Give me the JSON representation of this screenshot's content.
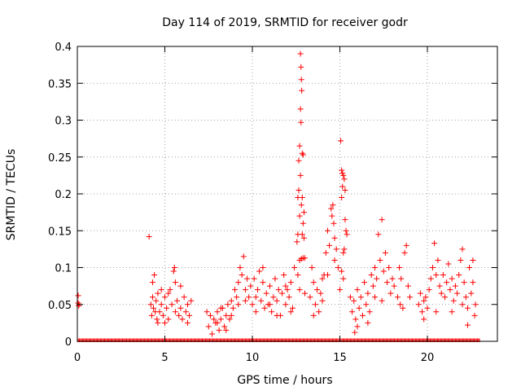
{
  "chart_data": {
    "type": "scatter",
    "title": "Day 114 of 2019, SRMTID for receiver godr",
    "xlabel": "GPS time / hours",
    "ylabel": "SRMTID / TECUs",
    "xlim": [
      0,
      24
    ],
    "ylim": [
      0,
      0.4
    ],
    "xticks": [
      0,
      5,
      10,
      15,
      20
    ],
    "yticks": [
      0,
      0.05,
      0.1,
      0.15,
      0.2,
      0.25,
      0.3,
      0.35,
      0.4
    ],
    "ytick_labels": [
      "0",
      "0.05",
      "0.1",
      "0.15",
      "0.2",
      "0.25",
      "0.3",
      "0.35",
      "0.4"
    ],
    "grid": true,
    "marker": "+",
    "color": "#ff0000",
    "series": [
      {
        "name": "SRMTID",
        "points": [
          [
            0.05,
            0.062
          ],
          [
            0.05,
            0.052
          ],
          [
            0.08,
            0.048
          ],
          [
            0.1,
            0.05
          ],
          [
            4.1,
            0.142
          ],
          [
            4.2,
            0.05
          ],
          [
            4.25,
            0.035
          ],
          [
            4.3,
            0.06
          ],
          [
            4.35,
            0.045
          ],
          [
            4.4,
            0.09
          ],
          [
            4.45,
            0.04
          ],
          [
            4.5,
            0.055
          ],
          [
            4.55,
            0.03
          ],
          [
            4.6,
            0.065
          ],
          [
            4.7,
            0.04
          ],
          [
            4.8,
            0.05
          ],
          [
            4.9,
            0.035
          ],
          [
            5.0,
            0.06
          ],
          [
            5.1,
            0.045
          ],
          [
            5.2,
            0.03
          ],
          [
            5.3,
            0.07
          ],
          [
            5.4,
            0.05
          ],
          [
            5.5,
            0.095
          ],
          [
            5.55,
            0.1
          ],
          [
            5.6,
            0.04
          ],
          [
            5.7,
            0.055
          ],
          [
            5.8,
            0.035
          ],
          [
            5.9,
            0.045
          ],
          [
            6.0,
            0.03
          ],
          [
            6.1,
            0.06
          ],
          [
            6.2,
            0.04
          ],
          [
            6.3,
            0.05
          ],
          [
            6.4,
            0.035
          ],
          [
            6.5,
            0.055
          ],
          [
            4.3,
            0.08
          ],
          [
            4.6,
            0.025
          ],
          [
            5.2,
            0.065
          ],
          [
            5.9,
            0.075
          ],
          [
            6.3,
            0.025
          ],
          [
            4.8,
            0.07
          ],
          [
            5.0,
            0.025
          ],
          [
            5.6,
            0.08
          ],
          [
            7.4,
            0.04
          ],
          [
            7.5,
            0.02
          ],
          [
            7.6,
            0.035
          ],
          [
            7.7,
            0.01
          ],
          [
            7.8,
            0.03
          ],
          [
            7.9,
            0.025
          ],
          [
            8.0,
            0.04
          ],
          [
            8.1,
            0.015
          ],
          [
            8.2,
            0.03
          ],
          [
            8.3,
            0.045
          ],
          [
            8.4,
            0.02
          ],
          [
            8.5,
            0.035
          ],
          [
            8.6,
            0.05
          ],
          [
            8.7,
            0.03
          ],
          [
            8.8,
            0.055
          ],
          [
            8.9,
            0.045
          ],
          [
            9.0,
            0.07
          ],
          [
            9.1,
            0.06
          ],
          [
            9.2,
            0.08
          ],
          [
            9.3,
            0.1
          ],
          [
            9.4,
            0.09
          ],
          [
            9.5,
            0.115
          ],
          [
            9.6,
            0.07
          ],
          [
            9.7,
            0.085
          ],
          [
            9.8,
            0.06
          ],
          [
            9.9,
            0.075
          ],
          [
            8.0,
            0.025
          ],
          [
            8.2,
            0.045
          ],
          [
            8.5,
            0.015
          ],
          [
            8.8,
            0.035
          ],
          [
            9.2,
            0.05
          ],
          [
            9.6,
            0.055
          ],
          [
            10.0,
            0.05
          ],
          [
            10.1,
            0.085
          ],
          [
            10.2,
            0.06
          ],
          [
            10.3,
            0.07
          ],
          [
            10.4,
            0.095
          ],
          [
            10.5,
            0.055
          ],
          [
            10.6,
            0.08
          ],
          [
            10.7,
            0.045
          ],
          [
            10.8,
            0.065
          ],
          [
            10.9,
            0.05
          ],
          [
            11.0,
            0.075
          ],
          [
            11.1,
            0.04
          ],
          [
            11.2,
            0.06
          ],
          [
            11.3,
            0.085
          ],
          [
            11.4,
            0.055
          ],
          [
            11.5,
            0.07
          ],
          [
            11.6,
            0.035
          ],
          [
            11.7,
            0.065
          ],
          [
            11.8,
            0.09
          ],
          [
            11.9,
            0.05
          ],
          [
            12.0,
            0.07
          ],
          [
            12.1,
            0.06
          ],
          [
            12.2,
            0.08
          ],
          [
            12.3,
            0.045
          ],
          [
            12.4,
            0.1
          ],
          [
            10.2,
            0.04
          ],
          [
            10.6,
            0.1
          ],
          [
            11.0,
            0.05
          ],
          [
            11.4,
            0.035
          ],
          [
            11.9,
            0.075
          ],
          [
            12.2,
            0.04
          ],
          [
            12.55,
            0.135
          ],
          [
            12.6,
            0.145
          ],
          [
            12.65,
            0.245
          ],
          [
            12.7,
            0.265
          ],
          [
            12.75,
            0.39
          ],
          [
            12.78,
            0.372
          ],
          [
            12.8,
            0.355
          ],
          [
            12.82,
            0.34
          ],
          [
            12.75,
            0.315
          ],
          [
            12.78,
            0.297
          ],
          [
            12.85,
            0.255
          ],
          [
            12.9,
            0.253
          ],
          [
            12.75,
            0.225
          ],
          [
            12.85,
            0.195
          ],
          [
            12.8,
            0.185
          ],
          [
            12.7,
            0.17
          ],
          [
            12.95,
            0.175
          ],
          [
            12.9,
            0.16
          ],
          [
            12.85,
            0.145
          ],
          [
            12.7,
            0.11
          ],
          [
            12.8,
            0.112
          ],
          [
            12.9,
            0.113
          ],
          [
            13.0,
            0.113
          ],
          [
            12.6,
            0.09
          ],
          [
            12.7,
            0.07
          ],
          [
            13.0,
            0.065
          ],
          [
            12.65,
            0.205
          ],
          [
            12.6,
            0.195
          ],
          [
            12.95,
            0.14
          ],
          [
            13.3,
            0.06
          ],
          [
            13.4,
            0.1
          ],
          [
            13.5,
            0.08
          ],
          [
            13.6,
            0.05
          ],
          [
            13.7,
            0.07
          ],
          [
            13.8,
            0.04
          ],
          [
            13.9,
            0.065
          ],
          [
            14.0,
            0.055
          ],
          [
            14.1,
            0.09
          ],
          [
            14.2,
            0.12
          ],
          [
            14.3,
            0.15
          ],
          [
            14.4,
            0.13
          ],
          [
            14.5,
            0.18
          ],
          [
            14.55,
            0.17
          ],
          [
            14.6,
            0.185
          ],
          [
            14.65,
            0.16
          ],
          [
            14.7,
            0.14
          ],
          [
            14.8,
            0.125
          ],
          [
            14.9,
            0.1
          ],
          [
            13.5,
            0.035
          ],
          [
            14.0,
            0.085
          ],
          [
            14.3,
            0.09
          ],
          [
            14.7,
            0.11
          ],
          [
            15.05,
            0.272
          ],
          [
            15.1,
            0.232
          ],
          [
            15.15,
            0.228
          ],
          [
            15.2,
            0.225
          ],
          [
            15.25,
            0.22
          ],
          [
            15.3,
            0.205
          ],
          [
            15.15,
            0.21
          ],
          [
            15.1,
            0.195
          ],
          [
            15.3,
            0.165
          ],
          [
            15.35,
            0.15
          ],
          [
            15.4,
            0.145
          ],
          [
            15.25,
            0.125
          ],
          [
            15.2,
            0.12
          ],
          [
            15.1,
            0.095
          ],
          [
            15.0,
            0.07
          ],
          [
            15.2,
            0.085
          ],
          [
            15.6,
            0.06
          ],
          [
            15.7,
            0.04
          ],
          [
            15.8,
            0.055
          ],
          [
            15.9,
            0.03
          ],
          [
            16.0,
            0.07
          ],
          [
            16.1,
            0.045
          ],
          [
            16.2,
            0.06
          ],
          [
            16.3,
            0.035
          ],
          [
            16.4,
            0.08
          ],
          [
            16.5,
            0.05
          ],
          [
            16.6,
            0.065
          ],
          [
            16.7,
            0.04
          ],
          [
            16.8,
            0.09
          ],
          [
            16.9,
            0.075
          ],
          [
            17.0,
            0.1
          ],
          [
            17.1,
            0.085
          ],
          [
            17.2,
            0.145
          ],
          [
            17.3,
            0.11
          ],
          [
            17.4,
            0.165
          ],
          [
            17.5,
            0.095
          ],
          [
            17.6,
            0.12
          ],
          [
            17.7,
            0.08
          ],
          [
            17.8,
            0.1
          ],
          [
            17.9,
            0.065
          ],
          [
            18.0,
            0.085
          ],
          [
            18.1,
            0.075
          ],
          [
            16.0,
            0.02
          ],
          [
            15.85,
            0.012
          ],
          [
            16.6,
            0.025
          ],
          [
            17.0,
            0.06
          ],
          [
            17.4,
            0.055
          ],
          [
            18.3,
            0.06
          ],
          [
            18.4,
            0.1
          ],
          [
            18.5,
            0.085
          ],
          [
            18.6,
            0.045
          ],
          [
            18.7,
            0.12
          ],
          [
            18.8,
            0.13
          ],
          [
            18.9,
            0.075
          ],
          [
            19.0,
            0.06
          ],
          [
            18.45,
            0.05
          ],
          [
            19.5,
            0.05
          ],
          [
            19.6,
            0.065
          ],
          [
            19.7,
            0.04
          ],
          [
            19.8,
            0.055
          ],
          [
            19.9,
            0.06
          ],
          [
            20.0,
            0.045
          ],
          [
            20.1,
            0.07
          ],
          [
            20.2,
            0.085
          ],
          [
            20.3,
            0.1
          ],
          [
            20.4,
            0.133
          ],
          [
            20.5,
            0.09
          ],
          [
            20.6,
            0.11
          ],
          [
            20.7,
            0.075
          ],
          [
            20.8,
            0.065
          ],
          [
            20.9,
            0.09
          ],
          [
            21.0,
            0.06
          ],
          [
            21.1,
            0.08
          ],
          [
            21.2,
            0.105
          ],
          [
            21.3,
            0.07
          ],
          [
            21.4,
            0.085
          ],
          [
            21.5,
            0.055
          ],
          [
            21.6,
            0.075
          ],
          [
            21.7,
            0.065
          ],
          [
            21.8,
            0.09
          ],
          [
            21.9,
            0.11
          ],
          [
            22.0,
            0.125
          ],
          [
            22.1,
            0.08
          ],
          [
            22.2,
            0.06
          ],
          [
            22.3,
            0.045
          ],
          [
            22.4,
            0.1
          ],
          [
            22.5,
            0.065
          ],
          [
            22.6,
            0.08
          ],
          [
            22.7,
            0.035
          ],
          [
            22.75,
            0.05
          ],
          [
            22.3,
            0.022
          ],
          [
            19.8,
            0.03
          ],
          [
            20.5,
            0.04
          ],
          [
            21.4,
            0.04
          ],
          [
            22.0,
            0.05
          ],
          [
            22.6,
            0.11
          ]
        ]
      }
    ]
  }
}
